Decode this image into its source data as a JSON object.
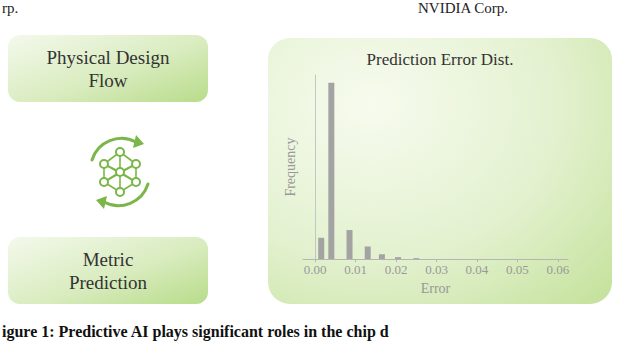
{
  "header": {
    "left": "rp.",
    "right": "NVIDIA Corp."
  },
  "diagram": {
    "nodes": [
      {
        "label": "Physical Design Flow"
      },
      {
        "label": "Metric Prediction"
      }
    ]
  },
  "caption": "igure 1: Predictive AI plays significant roles in the chip d",
  "chart_data": {
    "type": "bar",
    "title": "Prediction Error Dist.",
    "x_label": "Error",
    "y_label": "Frequency",
    "x": [
      0.0015,
      0.004,
      0.0085,
      0.013,
      0.0165,
      0.0205,
      0.025
    ],
    "values": [
      22,
      182,
      30,
      13,
      5,
      2,
      1
    ],
    "color": "#a3a3a3",
    "xlim": [
      -0.003,
      0.0625
    ],
    "xticks": [
      {
        "value": 0,
        "label": "0.00"
      },
      {
        "value": 0.01,
        "label": "0.01"
      },
      {
        "value": 0.02,
        "label": "0.02"
      },
      {
        "value": 0.03,
        "label": "0.03"
      },
      {
        "value": 0.04,
        "label": "0.04"
      },
      {
        "value": 0.05,
        "label": "0.05"
      },
      {
        "value": 0.06,
        "label": "0.06"
      }
    ],
    "ylim": [
      0,
      190
    ],
    "tick_labels": "x",
    "grid": false
  }
}
